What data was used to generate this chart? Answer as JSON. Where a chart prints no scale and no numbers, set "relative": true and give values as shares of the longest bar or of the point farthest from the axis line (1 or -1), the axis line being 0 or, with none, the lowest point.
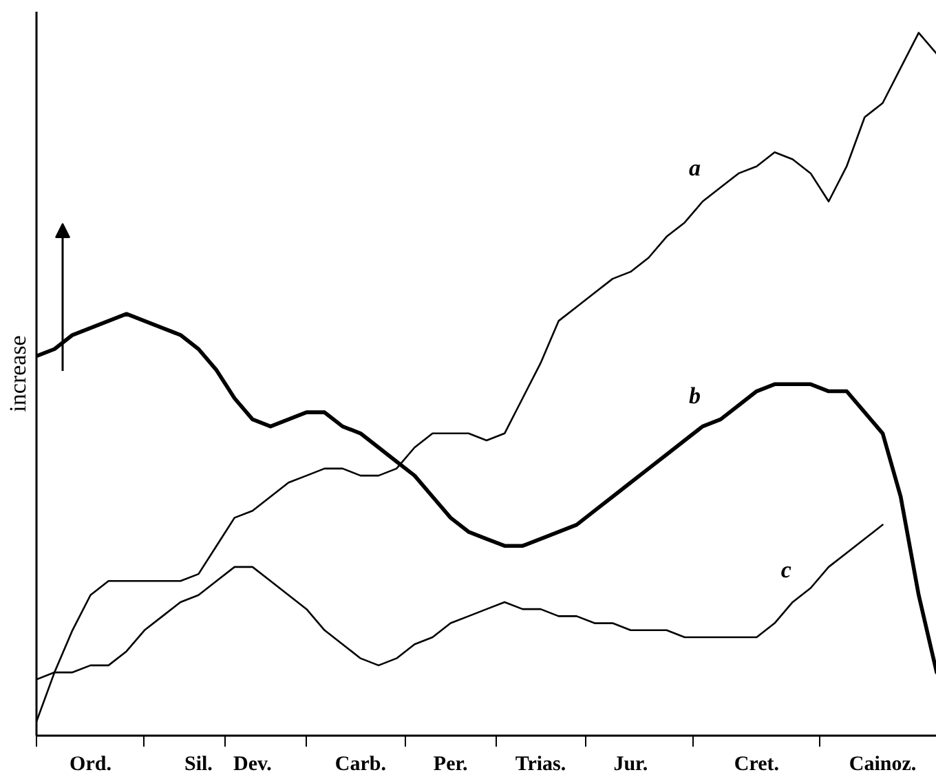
{
  "chart_data": {
    "type": "line",
    "relative": true,
    "ylabel": "increase",
    "categories": [
      null,
      null,
      null,
      "Ord.",
      null,
      null,
      null,
      null,
      null,
      "Sil.",
      null,
      null,
      "Dev.",
      null,
      null,
      null,
      null,
      null,
      "Carb.",
      null,
      null,
      null,
      null,
      "Per.",
      null,
      null,
      null,
      null,
      "Trias.",
      null,
      null,
      null,
      null,
      "Jur.",
      null,
      null,
      null,
      null,
      null,
      null,
      "Cret.",
      null,
      null,
      null,
      null,
      null,
      null,
      "Cainoz.",
      null,
      null,
      null
    ],
    "grid": false,
    "legend": false,
    "marker": "none",
    "line_style": "solid",
    "series": [
      {
        "name": "a",
        "color": "#000000",
        "values": [
          0.02,
          0.09,
          0.15,
          0.2,
          0.22,
          0.22,
          0.22,
          0.22,
          0.22,
          0.23,
          0.27,
          0.31,
          0.32,
          0.34,
          0.36,
          0.37,
          0.38,
          0.38,
          0.37,
          0.37,
          0.38,
          0.41,
          0.43,
          0.43,
          0.43,
          0.42,
          0.43,
          0.48,
          0.53,
          0.59,
          0.61,
          0.63,
          0.65,
          0.66,
          0.68,
          0.71,
          0.73,
          0.76,
          0.78,
          0.8,
          0.81,
          0.83,
          0.82,
          0.8,
          0.76,
          0.81,
          0.88,
          0.9,
          0.95,
          1.0,
          0.97
        ]
      },
      {
        "name": "b",
        "color": "#000000",
        "values": [
          0.54,
          0.55,
          0.57,
          0.58,
          0.59,
          0.6,
          0.59,
          0.58,
          0.57,
          0.55,
          0.52,
          0.48,
          0.45,
          0.44,
          0.45,
          0.46,
          0.46,
          0.44,
          0.43,
          0.41,
          0.39,
          0.37,
          0.34,
          0.31,
          0.29,
          0.28,
          0.27,
          0.27,
          0.28,
          0.29,
          0.3,
          0.32,
          0.34,
          0.36,
          0.38,
          0.4,
          0.42,
          0.44,
          0.45,
          0.47,
          0.49,
          0.5,
          0.5,
          0.5,
          0.49,
          0.49,
          0.46,
          0.43,
          0.34,
          0.2,
          0.09
        ]
      },
      {
        "name": "c",
        "color": "#000000",
        "values": [
          0.08,
          0.09,
          0.09,
          0.1,
          0.1,
          0.12,
          0.15,
          0.17,
          0.19,
          0.2,
          0.22,
          0.24,
          0.24,
          0.22,
          0.2,
          0.18,
          0.15,
          0.13,
          0.11,
          0.1,
          0.11,
          0.13,
          0.14,
          0.16,
          0.17,
          0.18,
          0.19,
          0.18,
          0.18,
          0.17,
          0.17,
          0.16,
          0.16,
          0.15,
          0.15,
          0.15,
          0.14,
          0.14,
          0.14,
          0.14,
          0.14,
          0.16,
          0.19,
          0.21,
          0.24,
          0.26,
          0.28,
          0.3,
          null,
          null,
          null
        ]
      }
    ]
  }
}
